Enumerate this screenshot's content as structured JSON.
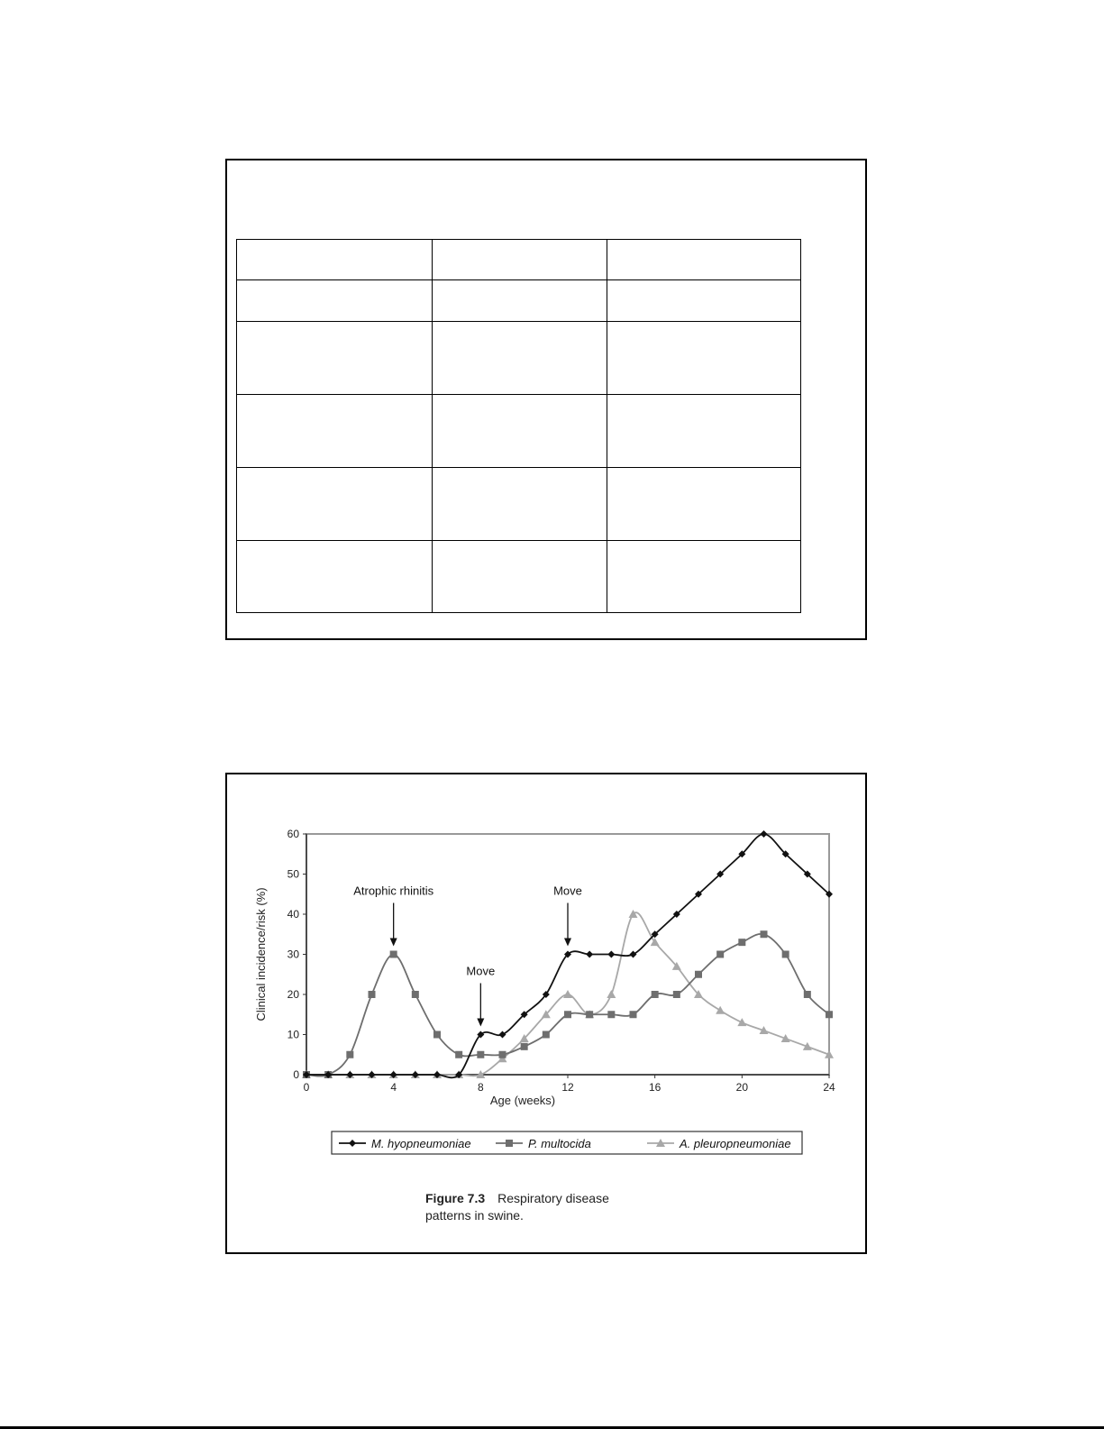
{
  "table": {
    "rows": 6,
    "columns": 3
  },
  "chart_data": {
    "type": "line",
    "xlabel": "Age (weeks)",
    "ylabel": "Clinical incidence/risk (%)",
    "xlim": [
      0,
      24
    ],
    "ylim": [
      0,
      60
    ],
    "xticks": [
      0,
      4,
      8,
      12,
      16,
      20,
      24
    ],
    "yticks": [
      0,
      10,
      20,
      30,
      40,
      50,
      60
    ],
    "x": [
      0,
      1,
      2,
      3,
      4,
      5,
      6,
      7,
      8,
      9,
      10,
      11,
      12,
      13,
      14,
      15,
      16,
      17,
      18,
      19,
      20,
      21,
      22,
      23,
      24
    ],
    "series": [
      {
        "name": "M. hyopneumoniae",
        "marker": "diamond",
        "color": "#111111",
        "values": [
          0,
          0,
          0,
          0,
          0,
          0,
          0,
          0,
          10,
          10,
          15,
          20,
          30,
          30,
          30,
          30,
          35,
          40,
          45,
          50,
          55,
          60,
          55,
          50,
          45
        ]
      },
      {
        "name": "P. multocida",
        "marker": "square",
        "color": "#6e6e6e",
        "values": [
          0,
          0,
          5,
          20,
          30,
          20,
          10,
          5,
          5,
          5,
          7,
          10,
          15,
          15,
          15,
          15,
          20,
          20,
          25,
          30,
          33,
          35,
          30,
          20,
          15
        ]
      },
      {
        "name": "A. pleuropneumoniae",
        "marker": "triangle",
        "color": "#a8a8a8",
        "values": [
          0,
          0,
          0,
          0,
          0,
          0,
          0,
          0,
          0,
          4,
          9,
          15,
          20,
          15,
          20,
          40,
          33,
          27,
          20,
          16,
          13,
          11,
          9,
          7,
          5
        ]
      }
    ],
    "annotations": [
      {
        "text": "Atrophic rhinitis",
        "x": 4,
        "y": 30
      },
      {
        "text": "Move",
        "x": 8,
        "y": 10
      },
      {
        "text": "Move",
        "x": 12,
        "y": 30
      }
    ],
    "legend": "bottom",
    "grid": false
  },
  "caption": {
    "label": "Figure 7.3",
    "text": "Respiratory disease",
    "text2": "patterns in swine."
  }
}
